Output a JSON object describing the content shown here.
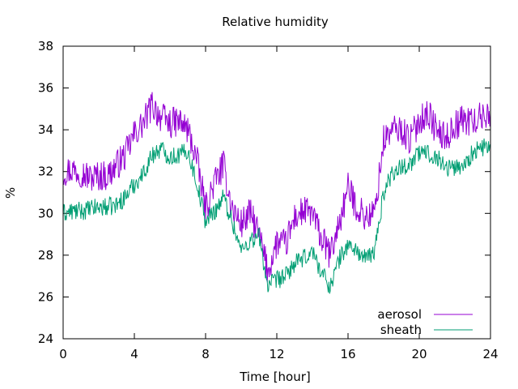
{
  "chart_data": {
    "type": "line",
    "title": "Relative humidity",
    "xlabel": "Time [hour]",
    "ylabel": "%",
    "xlim": [
      0,
      24
    ],
    "ylim": [
      24,
      38
    ],
    "xticks": [
      0,
      4,
      8,
      12,
      16,
      20,
      24
    ],
    "yticks": [
      24,
      26,
      28,
      30,
      32,
      34,
      36,
      38
    ],
    "grid": false,
    "legend_position": "bottom-right",
    "series": [
      {
        "name": "aerosol",
        "color": "#9400d3",
        "x": [
          0,
          0.5,
          1,
          1.5,
          2,
          2.5,
          3,
          3.5,
          4,
          4.5,
          5,
          5.5,
          6,
          6.5,
          7,
          7.5,
          8,
          8.5,
          9,
          9.5,
          10,
          10.5,
          11,
          11.5,
          12,
          12.5,
          13,
          13.5,
          14,
          14.5,
          15,
          15.5,
          16,
          16.5,
          17,
          17.5,
          18,
          18.5,
          19,
          19.5,
          20,
          20.5,
          21,
          21.5,
          22,
          22.5,
          23,
          23.5,
          24
        ],
        "y": [
          32.0,
          32.1,
          32.0,
          31.7,
          31.8,
          31.8,
          32.3,
          32.8,
          33.8,
          34.3,
          35.2,
          34.6,
          34.3,
          34.4,
          34.0,
          32.6,
          30.2,
          31.5,
          32.3,
          30.2,
          29.5,
          30.0,
          29.0,
          27.2,
          28.6,
          28.5,
          29.8,
          30.1,
          30.0,
          28.8,
          28.0,
          29.5,
          31.2,
          30.3,
          29.8,
          30.0,
          33.5,
          34.0,
          34.0,
          33.5,
          34.5,
          34.8,
          33.9,
          33.6,
          34.2,
          34.5,
          34.4,
          34.6,
          34.8
        ]
      },
      {
        "name": "sheath",
        "color": "#009e73",
        "x": [
          0,
          0.5,
          1,
          1.5,
          2,
          2.5,
          3,
          3.5,
          4,
          4.5,
          5,
          5.5,
          6,
          6.5,
          7,
          7.5,
          8,
          8.5,
          9,
          9.5,
          10,
          10.5,
          11,
          11.5,
          12,
          12.5,
          13,
          13.5,
          14,
          14.5,
          15,
          15.5,
          16,
          16.5,
          17,
          17.5,
          18,
          18.5,
          19,
          19.5,
          20,
          20.5,
          21,
          21.5,
          22,
          22.5,
          23,
          23.5,
          24
        ],
        "y": [
          30.0,
          30.1,
          30.1,
          30.2,
          30.3,
          30.3,
          30.4,
          30.8,
          31.4,
          31.9,
          32.8,
          33.1,
          32.7,
          32.8,
          33.0,
          31.5,
          29.6,
          30.1,
          30.8,
          29.6,
          28.2,
          28.7,
          28.9,
          26.5,
          26.8,
          27.0,
          27.6,
          27.8,
          28.2,
          27.2,
          26.5,
          27.8,
          28.5,
          28.2,
          27.8,
          28.2,
          31.0,
          32.0,
          32.2,
          32.4,
          32.9,
          32.9,
          32.7,
          32.2,
          32.2,
          32.3,
          32.9,
          33.1,
          33.3
        ]
      }
    ]
  }
}
